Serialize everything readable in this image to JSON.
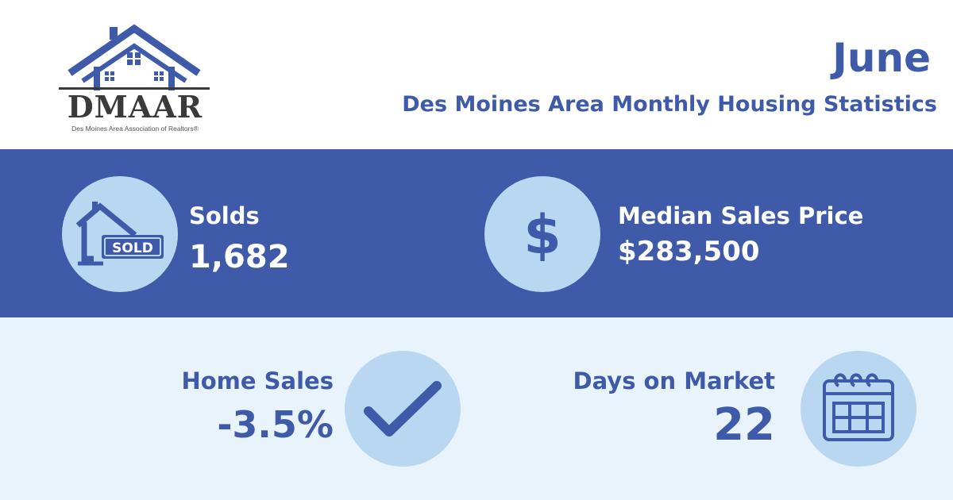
{
  "logo": {
    "name": "DMAAR",
    "tagline": "Des Moines Area Association of Realtors®"
  },
  "header": {
    "month": "June",
    "subtitle": "Des Moines Area Monthly Housing Statistics"
  },
  "stats": {
    "solds": {
      "label": "Solds",
      "value": "1,682",
      "icon": "sold-house-icon",
      "sign_text": "SOLD"
    },
    "median_price": {
      "label": "Median Sales Price",
      "value": "$283,500",
      "icon": "dollar-icon",
      "glyph": "$"
    },
    "home_sales": {
      "label": "Home Sales",
      "value": "-3.5%",
      "icon": "checkmark-icon"
    },
    "days_on_market": {
      "label": "Days on Market",
      "value": "22",
      "icon": "calendar-icon"
    }
  },
  "colors": {
    "brand_blue": "#3f5aa8",
    "circle_fill": "#b9d7f0",
    "light_band": "#e9f3fb",
    "logo_text": "#3a3a3a"
  }
}
